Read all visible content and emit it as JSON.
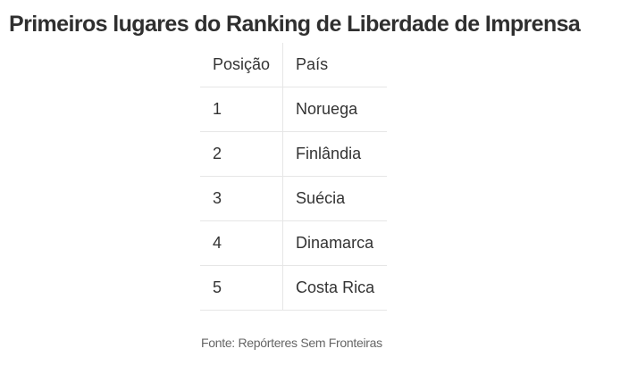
{
  "title": "Primeiros lugares do Ranking de Liberdade de Imprensa",
  "table": {
    "headers": [
      "Posição",
      "País"
    ],
    "rows": [
      [
        "1",
        "Noruega"
      ],
      [
        "2",
        "Finlândia"
      ],
      [
        "3",
        "Suécia"
      ],
      [
        "4",
        "Dinamarca"
      ],
      [
        "5",
        "Costa Rica"
      ]
    ]
  },
  "source": "Fonte: Repórteres Sem Fronteiras"
}
